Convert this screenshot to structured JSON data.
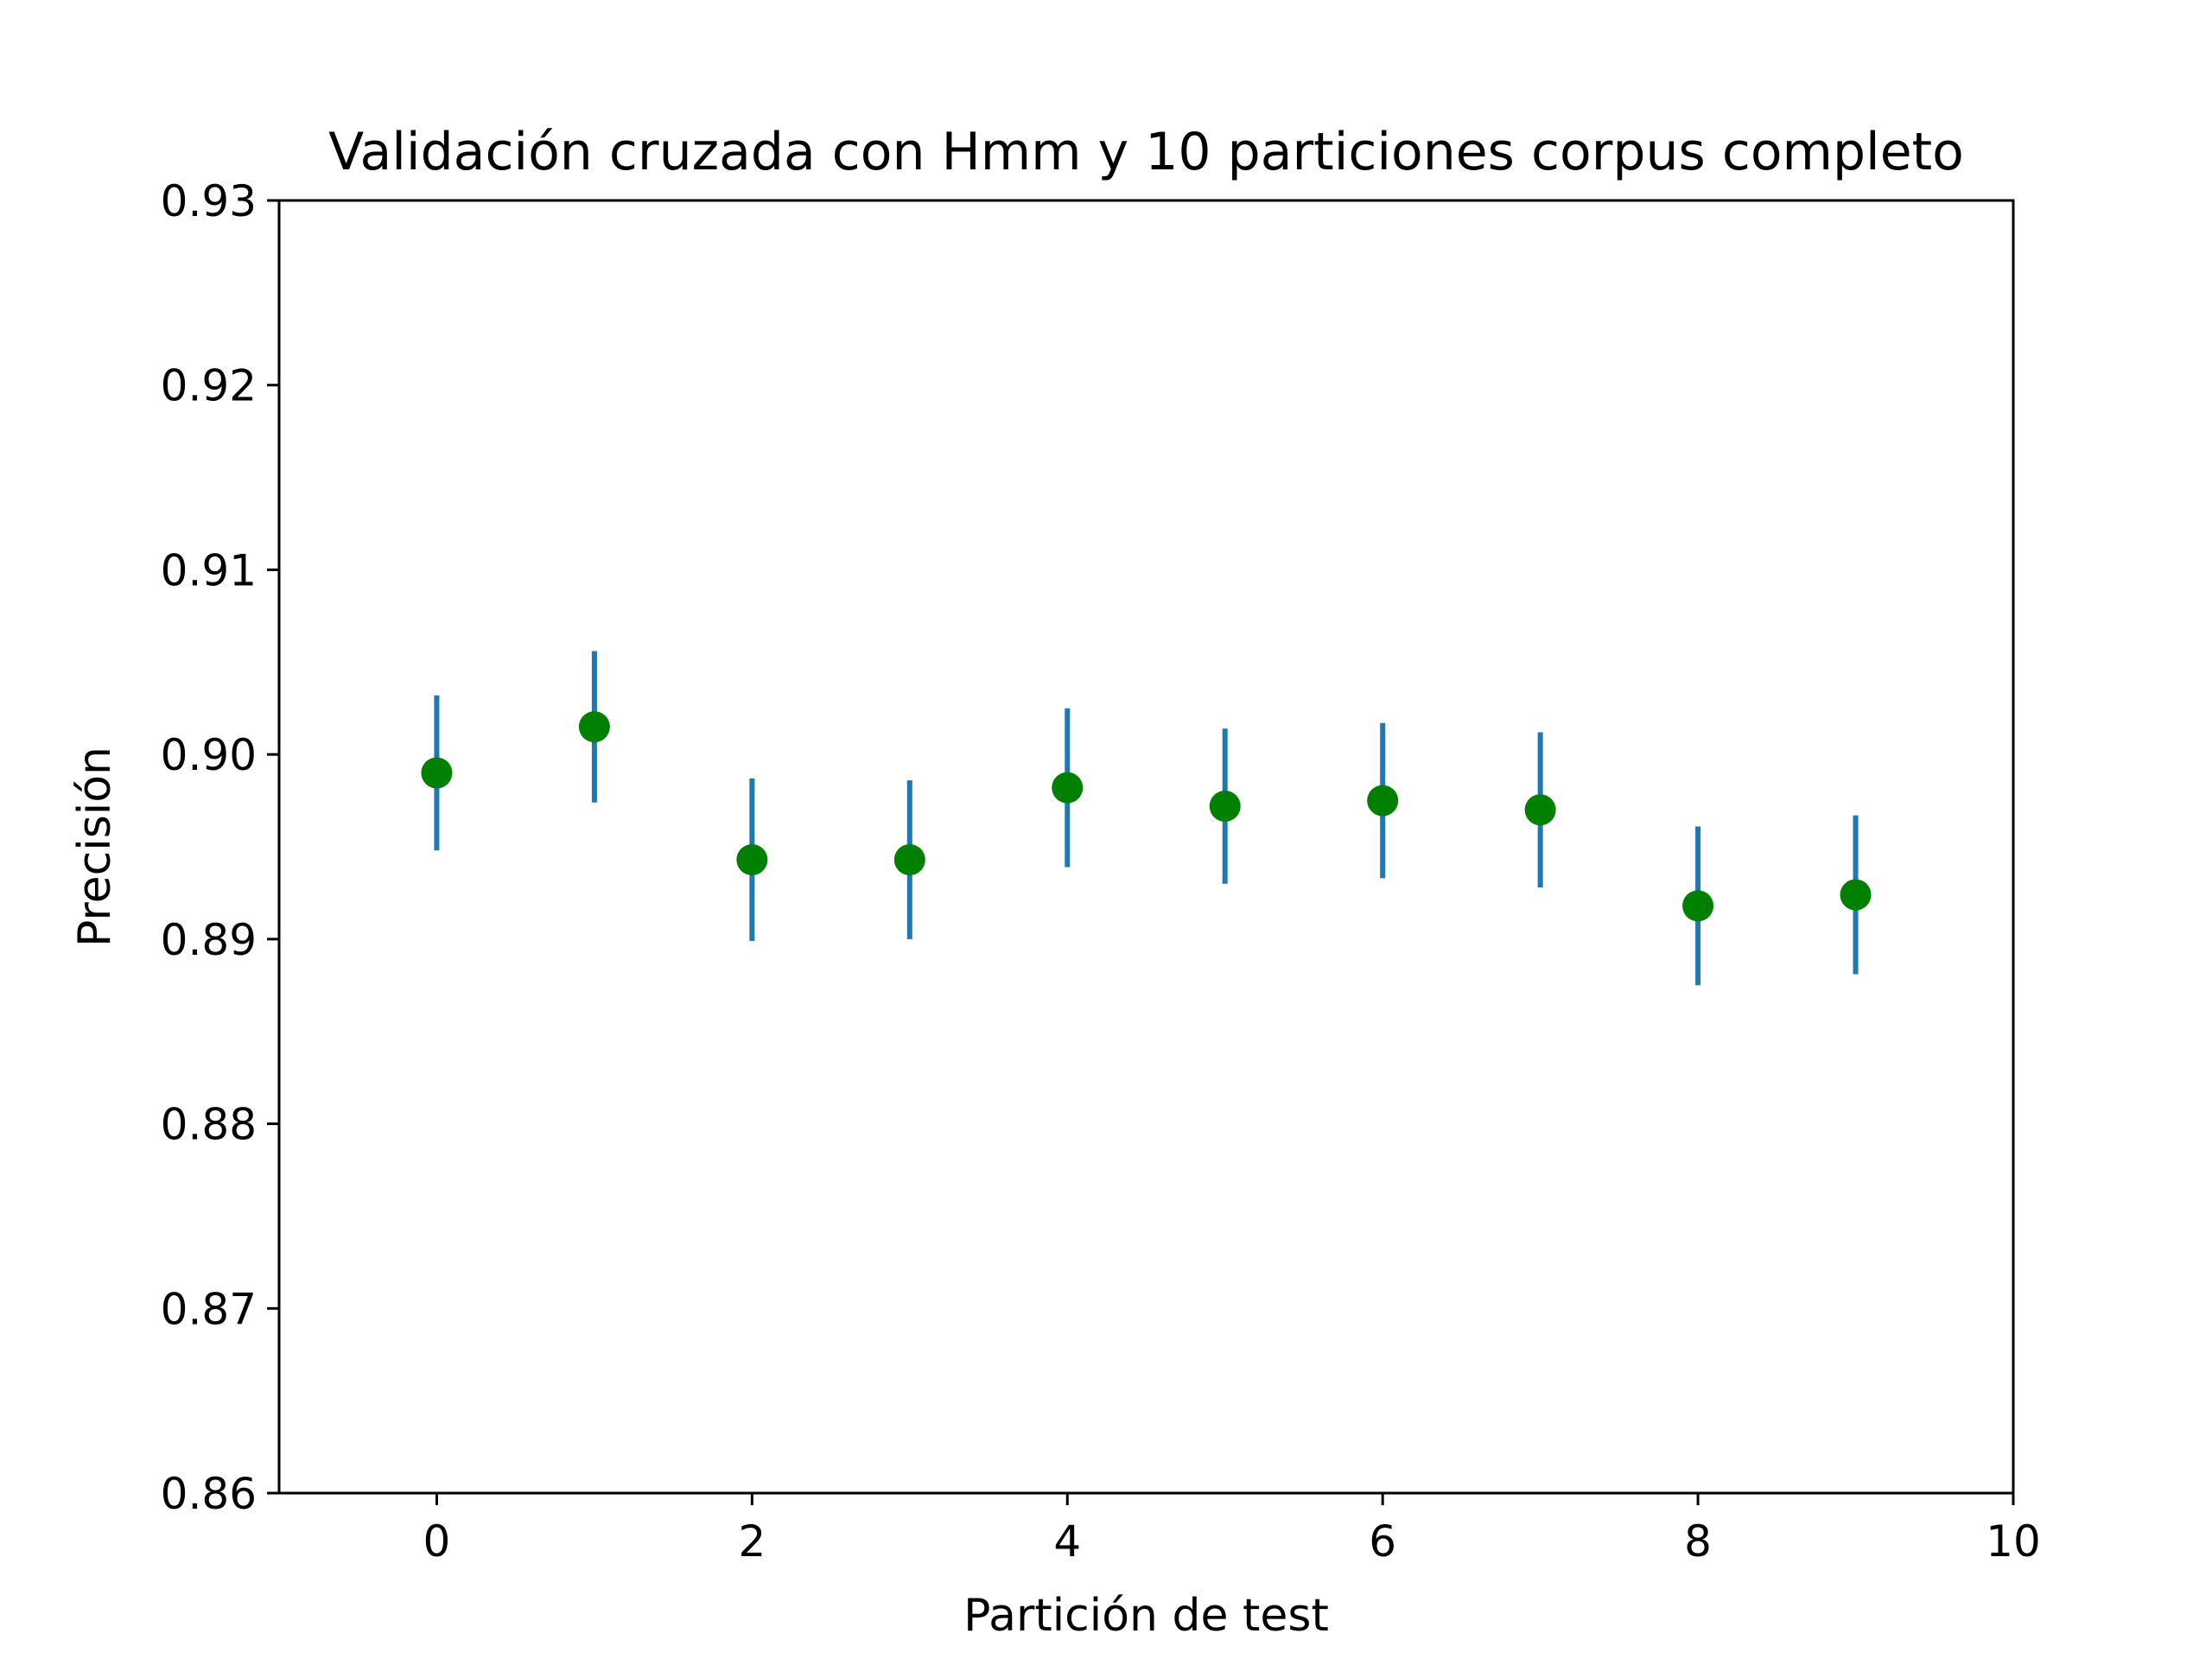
{
  "chart_data": {
    "type": "scatter",
    "title": "Validación cruzada con Hmm y 10 particiones corpus completo",
    "xlabel": "Partición de test",
    "ylabel": "Precisión",
    "xlim": [
      -1,
      10
    ],
    "ylim": [
      0.86,
      0.93
    ],
    "x_ticks": [
      0,
      2,
      4,
      6,
      8,
      10
    ],
    "x_tick_labels": [
      "0",
      "2",
      "4",
      "6",
      "8",
      "10"
    ],
    "y_ticks": [
      0.86,
      0.87,
      0.88,
      0.89,
      0.9,
      0.91,
      0.92,
      0.93
    ],
    "y_tick_labels": [
      "0.86",
      "0.87",
      "0.88",
      "0.89",
      "0.90",
      "0.91",
      "0.92",
      "0.93"
    ],
    "grid": false,
    "legend": "none",
    "marker_color": "#008000",
    "errorbar_color": "#1f77b4",
    "points": [
      {
        "x": 0,
        "y": 0.899,
        "err": 0.0042
      },
      {
        "x": 1,
        "y": 0.9015,
        "err": 0.0041
      },
      {
        "x": 2,
        "y": 0.8943,
        "err": 0.0044
      },
      {
        "x": 3,
        "y": 0.8943,
        "err": 0.0043
      },
      {
        "x": 4,
        "y": 0.8982,
        "err": 0.0043
      },
      {
        "x": 5,
        "y": 0.8972,
        "err": 0.0042
      },
      {
        "x": 6,
        "y": 0.8975,
        "err": 0.0042
      },
      {
        "x": 7,
        "y": 0.897,
        "err": 0.0042
      },
      {
        "x": 8,
        "y": 0.8918,
        "err": 0.0043
      },
      {
        "x": 9,
        "y": 0.8924,
        "err": 0.0043
      }
    ]
  }
}
